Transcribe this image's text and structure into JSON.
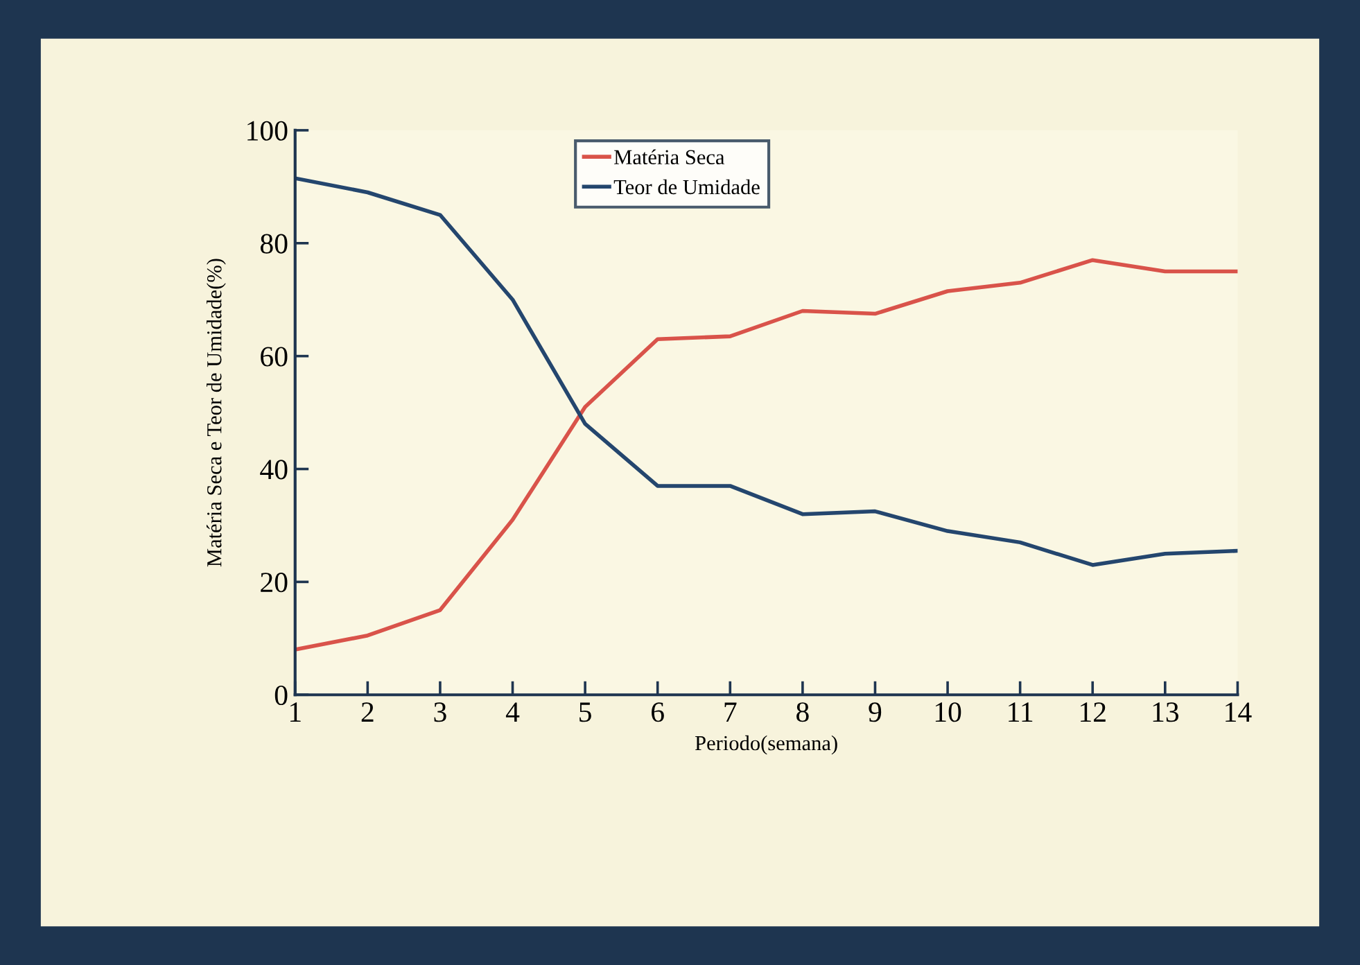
{
  "chart_data": {
    "type": "line",
    "xlabel": "Periodo(semana)",
    "ylabel": "Matéria Seca e Teor de Umidade(%)",
    "x": [
      1,
      2,
      3,
      4,
      5,
      6,
      7,
      8,
      9,
      10,
      11,
      12,
      13,
      14
    ],
    "series": [
      {
        "name": "Matéria Seca",
        "color": "#d9534a",
        "values": [
          8,
          10.5,
          15,
          31,
          51,
          63,
          63.5,
          68,
          67.5,
          71.5,
          73,
          77,
          75,
          75
        ]
      },
      {
        "name": "Teor de Umidade",
        "color": "#24466e",
        "values": [
          91.5,
          89,
          85,
          70,
          48,
          37,
          37,
          32,
          32.5,
          29,
          27,
          23,
          25,
          25.5
        ]
      }
    ],
    "xlim": [
      1,
      14
    ],
    "xticks": [
      1,
      2,
      3,
      4,
      5,
      6,
      7,
      8,
      9,
      10,
      11,
      12,
      13,
      14
    ],
    "ylim": [
      0,
      100
    ],
    "yticks": [
      0,
      20,
      40,
      60,
      80,
      100
    ],
    "grid": false,
    "legend": "top",
    "marker": "none",
    "line_style": "solid"
  }
}
